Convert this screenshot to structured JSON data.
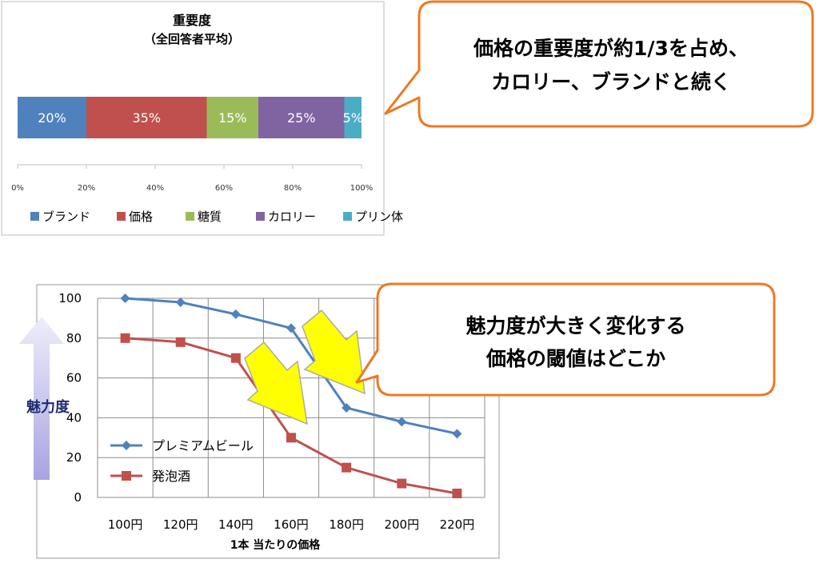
{
  "chart_data": [
    {
      "type": "bar",
      "orientation": "horizontal",
      "stacked": true,
      "title": "重要度",
      "subtitle": "（全回答者平均）",
      "xlim": [
        0,
        100
      ],
      "x_tick_labels": [
        "0%",
        "20%",
        "40%",
        "60%",
        "80%",
        "100%"
      ],
      "legend_position": "bottom",
      "series": [
        {
          "name": "ブランド",
          "value": 20,
          "label": "20%",
          "color": "#4f81bd"
        },
        {
          "name": "価格",
          "value": 35,
          "label": "35%",
          "color": "#c0504d"
        },
        {
          "name": "糖質",
          "value": 15,
          "label": "15%",
          "color": "#9bbb59"
        },
        {
          "name": "カロリー",
          "value": 25,
          "label": "25%",
          "color": "#8064a2"
        },
        {
          "name": "プリン体",
          "value": 5,
          "label": "5%",
          "color": "#4bacc6"
        }
      ]
    },
    {
      "type": "line",
      "categories": [
        "100円",
        "120円",
        "140円",
        "160円",
        "180円",
        "200円",
        "220円"
      ],
      "xlabel": "1本 当たりの価格",
      "ylabel": "魅力度",
      "ylim": [
        0,
        100
      ],
      "y_ticks": [
        0,
        20,
        40,
        60,
        80,
        100
      ],
      "y_tick_labels": [
        "0",
        "20",
        "40",
        "60",
        "80",
        "100"
      ],
      "grid": true,
      "legend_position": "bottom-left",
      "series": [
        {
          "name": "プレミアムビール",
          "values": [
            100,
            98,
            92,
            85,
            45,
            38,
            32
          ],
          "color": "#4f81bd",
          "marker": "diamond"
        },
        {
          "name": "発泡酒",
          "values": [
            80,
            78,
            70,
            30,
            15,
            7,
            2
          ],
          "color": "#c0504d",
          "marker": "square"
        }
      ]
    }
  ],
  "callouts": [
    {
      "lines": [
        "価格の重要度が約1/3を占め、",
        "カロリー、ブランドと続く"
      ],
      "border_color": "#f07820"
    },
    {
      "lines": [
        "魅力度が大きく変化する",
        "価格の閾値はどこか"
      ],
      "border_color": "#f07820"
    }
  ],
  "highlight_arrow_color": "#ffff00"
}
